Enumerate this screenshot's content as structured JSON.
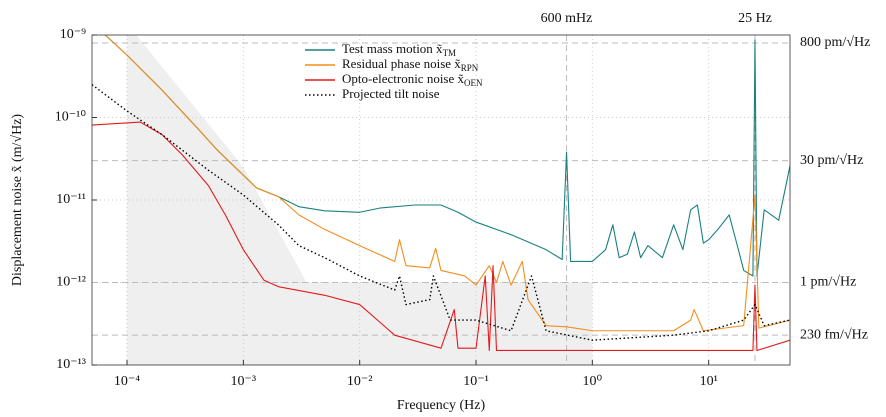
{
  "chart_data": {
    "type": "line",
    "xlabel": "Frequency (Hz)",
    "ylabel": "Displacement noise x̃ (m/√Hz)",
    "log_x": true,
    "log_y": true,
    "grid": true,
    "xlim": [
      5e-05,
      50
    ],
    "ylim": [
      1e-13,
      1e-09
    ],
    "xticks": [
      {
        "value": 0.0001,
        "label": "10⁻⁴"
      },
      {
        "value": 0.001,
        "label": "10⁻³"
      },
      {
        "value": 0.01,
        "label": "10⁻²"
      },
      {
        "value": 0.1,
        "label": "10⁻¹"
      },
      {
        "value": 1,
        "label": "10⁰"
      },
      {
        "value": 10,
        "label": "10¹"
      }
    ],
    "yticks": [
      {
        "value": 1e-13,
        "label": "10⁻¹³"
      },
      {
        "value": 1e-12,
        "label": "10⁻¹²"
      },
      {
        "value": 1e-11,
        "label": "10⁻¹¹"
      },
      {
        "value": 1e-10,
        "label": "10⁻¹⁰"
      },
      {
        "value": 1e-09,
        "label": "10⁻⁹"
      }
    ],
    "hlines": [
      {
        "value": 8e-10,
        "label": "800 pm/√Hz"
      },
      {
        "value": 3e-11,
        "label": "30 pm/√Hz"
      },
      {
        "value": 1e-12,
        "label": "1 pm/√Hz"
      },
      {
        "value": 2.3e-13,
        "label": "230 fm/√Hz"
      }
    ],
    "vlines": [
      {
        "value": 0.6,
        "label": "600 mHz"
      },
      {
        "value": 25,
        "label": "25 Hz"
      }
    ],
    "shaded_region": {
      "color": "#efefef",
      "x": [
        0.0001,
        0.0001,
        0.00012,
        0.001,
        0.0035,
        1,
        1
      ],
      "y": [
        1e-13,
        1e-09,
        1e-09,
        2.5e-11,
        1e-12,
        1e-12,
        1e-13
      ]
    },
    "legend": "upper center",
    "series": [
      {
        "name": "Test mass motion x̃",
        "name_sub": "TM",
        "color": "#1a8080",
        "style": "solid",
        "x": [
          6.5e-05,
          0.0001,
          0.0002,
          0.0004,
          0.0006,
          0.001,
          0.0013,
          0.002,
          0.003,
          0.005,
          0.01,
          0.015,
          0.03,
          0.05,
          0.07,
          0.1,
          0.2,
          0.4,
          0.55,
          0.6,
          0.65,
          1,
          1.3,
          1.5,
          1.7,
          2,
          2.3,
          2.6,
          3,
          4,
          5,
          6,
          7,
          8,
          9,
          10,
          12,
          15,
          18,
          20,
          24,
          25,
          26,
          30,
          40,
          50
        ],
        "values": [
          1e-09,
          5.7e-10,
          2.15e-10,
          7.5e-11,
          4e-11,
          2e-11,
          1.4e-11,
          1.1e-11,
          8.3e-12,
          7.4e-12,
          7.1e-12,
          8e-12,
          8.7e-12,
          8.7e-12,
          7.1e-12,
          5.4e-12,
          3.8e-12,
          2.5e-12,
          1.9e-12,
          3.8e-11,
          1.8e-12,
          1.8e-12,
          2.5e-12,
          5e-12,
          2e-12,
          2.2e-12,
          4.1e-12,
          2e-12,
          2.8e-12,
          2e-12,
          5e-12,
          2.5e-12,
          7.6e-12,
          8.7e-12,
          3e-12,
          3.3e-12,
          4.4e-12,
          6.6e-12,
          2.5e-12,
          1.4e-12,
          1.2e-12,
          8.7e-10,
          1.2e-12,
          7.6e-12,
          5.7e-12,
          2.6e-11
        ]
      },
      {
        "name": "Residual phase noise x̃",
        "name_sub": "RPN",
        "color": "#f28e1c",
        "style": "solid",
        "x": [
          6.5e-05,
          0.0001,
          0.0002,
          0.0004,
          0.0006,
          0.001,
          0.0013,
          0.002,
          0.003,
          0.005,
          0.01,
          0.02,
          0.022,
          0.025,
          0.04,
          0.045,
          0.05,
          0.08,
          0.1,
          0.13,
          0.15,
          0.17,
          0.2,
          0.25,
          0.28,
          0.4,
          0.6,
          1,
          5,
          7,
          7.5,
          9,
          20,
          25,
          27,
          50
        ],
        "values": [
          1e-09,
          5.7e-10,
          2.15e-10,
          7.5e-11,
          4e-11,
          2e-11,
          1.4e-11,
          1.1e-11,
          6.6e-12,
          4.4e-12,
          2.8e-12,
          1.8e-12,
          3.3e-12,
          1.6e-12,
          1.5e-12,
          2.6e-12,
          1.4e-12,
          1.2e-12,
          9.3e-13,
          1.6e-12,
          1e-12,
          1.8e-12,
          9.3e-13,
          1.8e-12,
          6.2e-13,
          3e-13,
          2.9e-13,
          2.6e-13,
          2.6e-13,
          3.5e-13,
          4.7e-13,
          2.6e-13,
          3e-13,
          1.15e-11,
          2.8e-13,
          3.5e-13
        ]
      },
      {
        "name": "Opto-electronic noise x̃",
        "name_sub": "OEN",
        "color": "#e41a1c",
        "style": "solid",
        "x": [
          5e-05,
          0.00013,
          0.0002,
          0.0003,
          0.0005,
          0.0007,
          0.001,
          0.0015,
          0.002,
          0.005,
          0.01,
          0.02,
          0.05,
          0.065,
          0.07,
          0.1,
          0.12,
          0.13,
          0.14,
          0.15,
          0.2,
          1,
          24,
          25,
          26,
          50
        ],
        "values": [
          8.1e-11,
          8.8e-11,
          6.2e-11,
          3.5e-11,
          1.5e-11,
          6.6e-12,
          2.5e-12,
          1.07e-12,
          8.9e-13,
          7e-13,
          5.4e-13,
          2.3e-13,
          1.6e-13,
          4.7e-13,
          1.6e-13,
          1.6e-13,
          1.2e-12,
          1.5e-13,
          1.6e-12,
          1.5e-13,
          1.5e-13,
          1.5e-13,
          1.5e-13,
          9.3e-13,
          1.5e-13,
          2e-13
        ]
      },
      {
        "name": "Projected tilt noise",
        "color": "#000000",
        "style": "dotted",
        "x": [
          5e-05,
          0.0001,
          0.0002,
          0.0005,
          0.001,
          0.002,
          0.003,
          0.005,
          0.01,
          0.02,
          0.022,
          0.025,
          0.04,
          0.043,
          0.06,
          0.1,
          0.2,
          0.3,
          0.4,
          1,
          5,
          10,
          20,
          25,
          30,
          50
        ],
        "values": [
          2.5e-10,
          1.2e-10,
          6.2e-11,
          2.3e-11,
          1.15e-11,
          5e-12,
          2.8e-12,
          2e-12,
          1.2e-12,
          8.1e-13,
          1.2e-12,
          5.4e-13,
          6.2e-13,
          1.2e-12,
          3.5e-13,
          3.5e-13,
          2.6e-13,
          1.2e-12,
          2.6e-13,
          2e-13,
          2.3e-13,
          2.6e-13,
          3.5e-13,
          5.4e-13,
          3e-13,
          3.5e-13
        ]
      }
    ]
  }
}
